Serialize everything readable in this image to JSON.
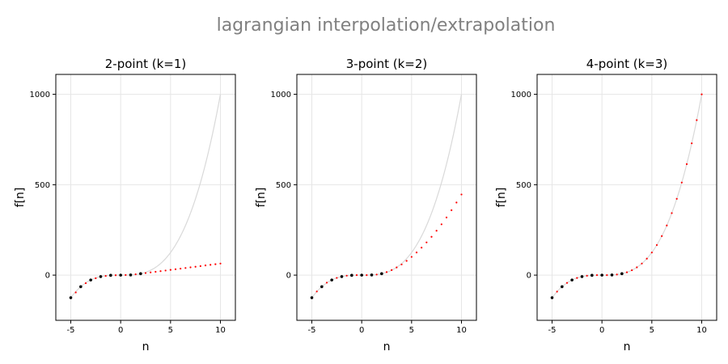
{
  "figure": {
    "title": "lagrangian interpolation/extrapolation"
  },
  "chart_data": [
    {
      "type": "scatter",
      "title": "2-point (k=1)",
      "xlabel": "n",
      "ylabel": "f[n]",
      "xlim": [
        -6.5,
        11.5
      ],
      "ylim": [
        -250,
        1110
      ],
      "xticks": [
        -5,
        0,
        5,
        10
      ],
      "yticks": [
        0,
        500,
        1000
      ],
      "grid": true,
      "reference_curve": {
        "function": "n^3",
        "x_range": [
          -5,
          10
        ],
        "color": "#d9d9d9"
      },
      "known_points": {
        "x": [
          -5,
          -4,
          -3,
          -2,
          -1,
          0,
          1,
          2
        ],
        "color": "#000000"
      },
      "series": [
        {
          "x": [
            -4.5,
            -4,
            -3.5,
            -3,
            -2.5,
            -2,
            -1.5,
            -1,
            -0.5,
            0,
            0.5,
            1,
            1.5,
            2,
            2.5,
            3,
            3.5,
            4,
            4.5,
            5,
            5.5,
            6,
            6.5,
            7,
            7.5,
            8,
            8.5,
            9,
            9.5,
            10
          ],
          "y": [
            -95.5,
            -64,
            -44.5,
            -27,
            -17.5,
            -8,
            -4.5,
            -1,
            -0.5,
            0,
            0.5,
            1,
            4.5,
            8,
            11.5,
            15,
            18.5,
            22,
            25.5,
            29,
            32.5,
            36,
            39.5,
            43,
            46.5,
            50,
            53.5,
            57,
            60.5,
            64
          ],
          "color": "#ff0000"
        }
      ]
    },
    {
      "type": "scatter",
      "title": "3-point (k=2)",
      "xlabel": "n",
      "ylabel": "f[n]",
      "xlim": [
        -6.5,
        11.5
      ],
      "ylim": [
        -250,
        1110
      ],
      "xticks": [
        -5,
        0,
        5,
        10
      ],
      "yticks": [
        0,
        500,
        1000
      ],
      "grid": true,
      "reference_curve": {
        "function": "n^3",
        "x_range": [
          -5,
          10
        ],
        "color": "#d9d9d9"
      },
      "known_points": {
        "x": [
          -5,
          -4,
          -3,
          -2,
          -1,
          0,
          1,
          2
        ],
        "color": "#000000"
      },
      "series": [
        {
          "x": [
            -4.5,
            -4,
            -3.5,
            -3,
            -2.5,
            -2,
            -1.5,
            -1,
            -0.5,
            0,
            0.5,
            1,
            1.5,
            2,
            2.5,
            3,
            3.5,
            4,
            4.5,
            5,
            5.5,
            6,
            6.5,
            7,
            7.5,
            8,
            8.5,
            9,
            9.5,
            10
          ],
          "y": [
            -90.4,
            -64,
            -41.6,
            -27,
            -15.4,
            -8,
            -3.1,
            -1,
            -0.1,
            0,
            0.1,
            1,
            3.1,
            8,
            16.6,
            28,
            42.3,
            59,
            78.9,
            101,
            125.3,
            152,
            180.9,
            212,
            245.3,
            281,
            318.9,
            359,
            401.4,
            446
          ],
          "color": "#ff0000"
        }
      ]
    },
    {
      "type": "scatter",
      "title": "4-point (k=3)",
      "xlabel": "n",
      "ylabel": "f[n]",
      "xlim": [
        -6.5,
        11.5
      ],
      "ylim": [
        -250,
        1110
      ],
      "xticks": [
        -5,
        0,
        5,
        10
      ],
      "yticks": [
        0,
        500,
        1000
      ],
      "grid": true,
      "reference_curve": {
        "function": "n^3",
        "x_range": [
          -5,
          10
        ],
        "color": "#d9d9d9"
      },
      "known_points": {
        "x": [
          -5,
          -4,
          -3,
          -2,
          -1,
          0,
          1,
          2
        ],
        "color": "#000000"
      },
      "series": [
        {
          "x": [
            -4.5,
            -4,
            -3.5,
            -3,
            -2.5,
            -2,
            -1.5,
            -1,
            -0.5,
            0,
            0.5,
            1,
            1.5,
            2,
            2.5,
            3,
            3.5,
            4,
            4.5,
            5,
            5.5,
            6,
            6.5,
            7,
            7.5,
            8,
            8.5,
            9,
            9.5,
            10
          ],
          "y": [
            -91.1,
            -64,
            -42.9,
            -27,
            -15.6,
            -8,
            -3.4,
            -1,
            -0.1,
            0,
            0.1,
            1,
            3.4,
            8,
            15.6,
            27,
            42.9,
            64,
            91.1,
            125,
            166.4,
            216,
            274.6,
            343,
            421.9,
            512,
            614.1,
            729,
            857.4,
            1000
          ],
          "color": "#ff0000"
        }
      ]
    }
  ]
}
